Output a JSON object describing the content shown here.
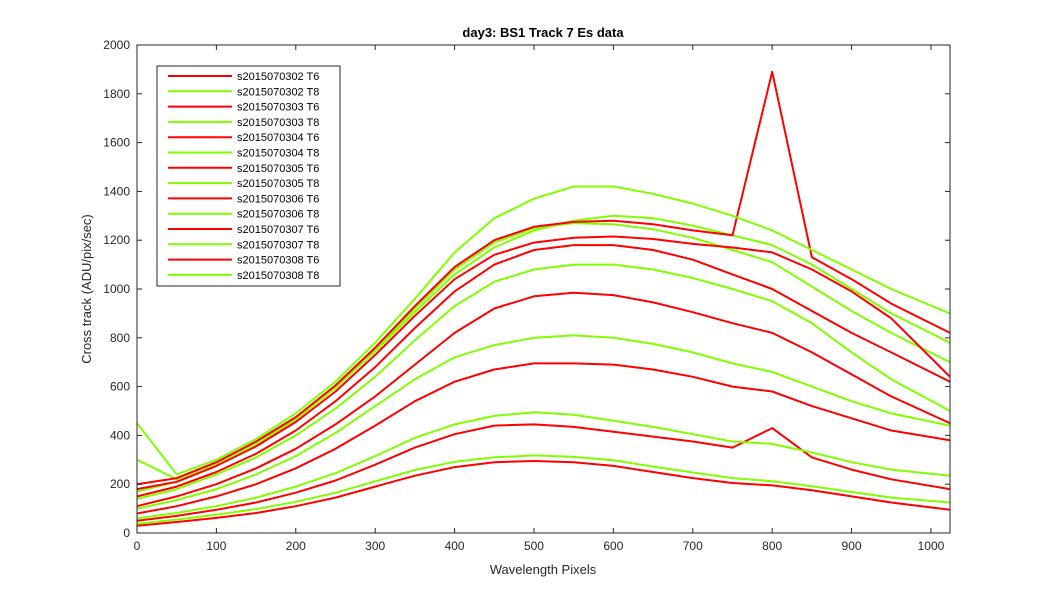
{
  "chart_data": {
    "type": "line",
    "title": "day3: BS1  Track 7 Es data",
    "xlabel": "Wavelength Pixels",
    "ylabel": "Cross track (ADU/pix/sec)",
    "xlim": [
      0,
      1024
    ],
    "ylim": [
      0,
      2000
    ],
    "xticks": [
      0,
      100,
      200,
      300,
      400,
      500,
      600,
      700,
      800,
      900,
      1000
    ],
    "yticks": [
      0,
      200,
      400,
      600,
      800,
      1000,
      1200,
      1400,
      1600,
      1800,
      2000
    ],
    "grid": false,
    "legend_position": "top-left",
    "colors": {
      "T6": "#ff0000",
      "T8": "#80ff00",
      "axis": "#262626"
    },
    "series": [
      {
        "name": "s2015070302 T6",
        "color": "#ff0000",
        "x": [
          0,
          50,
          100,
          150,
          200,
          250,
          300,
          350,
          400,
          450,
          500,
          550,
          600,
          650,
          700,
          750,
          800,
          850,
          900,
          950,
          1024
        ],
        "y": [
          30,
          45,
          62,
          82,
          110,
          145,
          190,
          235,
          270,
          290,
          295,
          290,
          275,
          250,
          225,
          205,
          195,
          175,
          150,
          125,
          95
        ]
      },
      {
        "name": "s2015070302 T8",
        "color": "#80ff00",
        "x": [
          0,
          50,
          100,
          150,
          200,
          250,
          300,
          350,
          400,
          450,
          500,
          550,
          600,
          650,
          700,
          750,
          800,
          850,
          900,
          950,
          1024
        ],
        "y": [
          38,
          55,
          75,
          98,
          128,
          165,
          212,
          258,
          292,
          310,
          318,
          312,
          298,
          272,
          248,
          225,
          212,
          192,
          168,
          145,
          125
        ]
      },
      {
        "name": "s2015070303 T6",
        "color": "#ff0000",
        "x": [
          0,
          50,
          100,
          150,
          200,
          250,
          300,
          350,
          400,
          450,
          500,
          550,
          600,
          650,
          700,
          750,
          800,
          850,
          900,
          950,
          1024
        ],
        "y": [
          50,
          70,
          95,
          125,
          165,
          215,
          280,
          350,
          405,
          440,
          445,
          435,
          415,
          395,
          375,
          350,
          430,
          310,
          260,
          220,
          180
        ]
      },
      {
        "name": "s2015070303 T8",
        "color": "#80ff00",
        "x": [
          0,
          50,
          100,
          150,
          200,
          250,
          300,
          350,
          400,
          450,
          500,
          550,
          600,
          650,
          700,
          750,
          800,
          850,
          900,
          950,
          1024
        ],
        "y": [
          60,
          82,
          110,
          145,
          190,
          245,
          315,
          390,
          445,
          480,
          495,
          485,
          460,
          435,
          405,
          375,
          365,
          330,
          290,
          260,
          235
        ]
      },
      {
        "name": "s2015070304 T6",
        "color": "#ff0000",
        "x": [
          0,
          50,
          100,
          150,
          200,
          250,
          300,
          350,
          400,
          450,
          500,
          550,
          600,
          650,
          700,
          750,
          800,
          850,
          900,
          950,
          1024
        ],
        "y": [
          80,
          110,
          150,
          200,
          265,
          345,
          440,
          540,
          620,
          670,
          695,
          695,
          690,
          670,
          640,
          600,
          580,
          520,
          470,
          420,
          380
        ]
      },
      {
        "name": "s2015070304 T8",
        "color": "#80ff00",
        "x": [
          0,
          50,
          100,
          150,
          200,
          250,
          300,
          350,
          400,
          450,
          500,
          550,
          600,
          650,
          700,
          750,
          800,
          850,
          900,
          950,
          1024
        ],
        "y": [
          100,
          135,
          180,
          240,
          315,
          410,
          520,
          630,
          720,
          770,
          800,
          810,
          800,
          775,
          740,
          695,
          660,
          600,
          540,
          490,
          440
        ]
      },
      {
        "name": "s2015070305 T6",
        "color": "#ff0000",
        "x": [
          0,
          50,
          100,
          150,
          200,
          250,
          300,
          350,
          400,
          450,
          500,
          550,
          600,
          650,
          700,
          750,
          800,
          850,
          900,
          950,
          1024
        ],
        "y": [
          110,
          150,
          200,
          265,
          345,
          445,
          560,
          690,
          820,
          920,
          970,
          985,
          975,
          945,
          905,
          860,
          820,
          740,
          650,
          560,
          450
        ]
      },
      {
        "name": "s2015070305 T8",
        "color": "#80ff00",
        "x": [
          0,
          50,
          100,
          150,
          200,
          250,
          300,
          350,
          400,
          450,
          500,
          550,
          600,
          650,
          700,
          750,
          800,
          850,
          900,
          950,
          1024
        ],
        "y": [
          140,
          180,
          240,
          310,
          400,
          510,
          640,
          790,
          930,
          1030,
          1080,
          1100,
          1100,
          1080,
          1045,
          1000,
          950,
          860,
          740,
          630,
          500
        ]
      },
      {
        "name": "s2015070306 T6",
        "color": "#ff0000",
        "x": [
          0,
          50,
          100,
          150,
          200,
          250,
          300,
          350,
          400,
          450,
          500,
          550,
          600,
          650,
          700,
          750,
          800,
          850,
          900,
          950,
          1024
        ],
        "y": [
          150,
          190,
          250,
          325,
          420,
          540,
          680,
          840,
          990,
          1100,
          1160,
          1180,
          1180,
          1160,
          1120,
          1060,
          1000,
          910,
          820,
          740,
          620
        ]
      },
      {
        "name": "s2015070306 T8",
        "color": "#80ff00",
        "x": [
          0,
          50,
          100,
          150,
          200,
          250,
          300,
          350,
          400,
          450,
          500,
          550,
          600,
          650,
          700,
          750,
          800,
          850,
          900,
          950,
          1024
        ],
        "y": [
          170,
          210,
          275,
          360,
          465,
          595,
          750,
          920,
          1080,
          1190,
          1250,
          1270,
          1265,
          1245,
          1210,
          1160,
          1110,
          1010,
          910,
          820,
          700
        ]
      },
      {
        "name": "s2015070307 T6",
        "color": "#ff0000",
        "x": [
          0,
          50,
          100,
          150,
          200,
          250,
          300,
          350,
          400,
          450,
          500,
          550,
          600,
          650,
          700,
          750,
          800,
          850,
          900,
          950,
          1024
        ],
        "y": [
          180,
          210,
          275,
          355,
          455,
          580,
          730,
          890,
          1040,
          1140,
          1190,
          1210,
          1215,
          1205,
          1185,
          1170,
          1150,
          1080,
          990,
          880,
          640
        ]
      },
      {
        "name": "s2015070307 T8",
        "color": "#80ff00",
        "x": [
          0,
          50,
          100,
          150,
          200,
          250,
          300,
          350,
          400,
          450,
          500,
          550,
          600,
          650,
          700,
          750,
          800,
          850,
          900,
          950,
          1024
        ],
        "y": [
          300,
          220,
          285,
          370,
          470,
          595,
          745,
          905,
          1060,
          1170,
          1240,
          1280,
          1300,
          1290,
          1260,
          1220,
          1180,
          1100,
          1000,
          900,
          780
        ]
      },
      {
        "name": "s2015070308 T6",
        "color": "#ff0000",
        "x": [
          0,
          50,
          100,
          150,
          200,
          250,
          300,
          350,
          400,
          450,
          500,
          550,
          600,
          650,
          700,
          750,
          800,
          850,
          900,
          950,
          1024
        ],
        "y": [
          200,
          225,
          290,
          375,
          475,
          605,
          760,
          930,
          1090,
          1200,
          1255,
          1275,
          1280,
          1265,
          1240,
          1220,
          1890,
          1130,
          1040,
          940,
          820
        ]
      },
      {
        "name": "s2015070308 T8",
        "color": "#80ff00",
        "x": [
          0,
          50,
          100,
          150,
          200,
          250,
          300,
          350,
          400,
          450,
          500,
          550,
          600,
          650,
          700,
          750,
          800,
          850,
          900,
          950,
          1024
        ],
        "y": [
          450,
          240,
          300,
          385,
          490,
          620,
          780,
          960,
          1150,
          1290,
          1370,
          1420,
          1420,
          1390,
          1350,
          1300,
          1240,
          1160,
          1080,
          1000,
          900
        ]
      }
    ]
  }
}
